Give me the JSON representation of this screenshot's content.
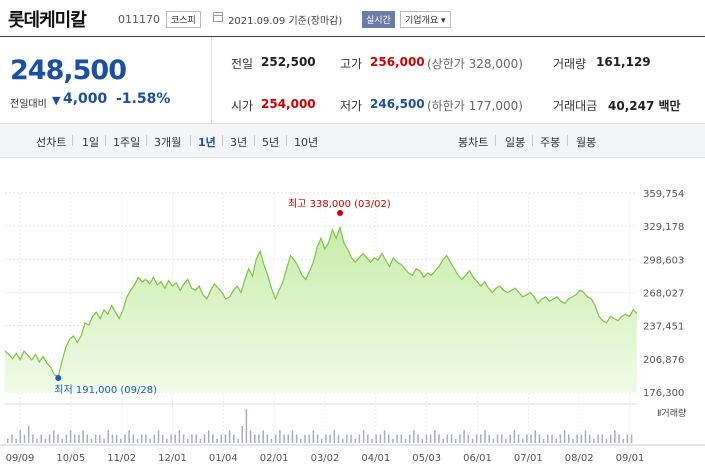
{
  "header": {
    "title": "롯데케미칼",
    "code": "011170",
    "market": "코스피",
    "date": "2021.09.09",
    "basis": "기준(장마감)",
    "realtime": "실시간",
    "corp_info": "기업개요"
  },
  "quote": {
    "price": "248,500",
    "diff_label": "전일대비",
    "diff_value": "4,000",
    "diff_pct": "-1.58%",
    "prev_label": "전일",
    "prev_value": "252,500",
    "high_label": "고가",
    "high_value": "256,000",
    "upper_limit": "(상한가 328,000)",
    "volume_label": "거래량",
    "volume_value": "161,129",
    "open_label": "시가",
    "open_value": "254,000",
    "low_label": "저가",
    "low_value": "246,500",
    "lower_limit": "(하한가 177,000)",
    "amount_label": "거래대금",
    "amount_value": "40,247 백만"
  },
  "periods": {
    "line_label": "선차트",
    "line_items": [
      "1일",
      "1주일",
      "3개월",
      "1년",
      "3년",
      "5년",
      "10년"
    ],
    "active": "1년",
    "candle_label": "봉차트",
    "candle_items": [
      "일봉",
      "주봉",
      "월봉"
    ]
  },
  "chart_data": {
    "type": "area",
    "y_ticks": [
      "359,754",
      "329,178",
      "298,603",
      "268,027",
      "237,451",
      "206,876",
      "176,300"
    ],
    "ylim": [
      176300,
      359754
    ],
    "x_labels": [
      "09/09",
      "10/05",
      "11/02",
      "12/01",
      "01/04",
      "02/01",
      "03/02",
      "04/01",
      "05/03",
      "06/01",
      "07/01",
      "08/02",
      "09/01"
    ],
    "max_label": "최고 338,000 (03/02)",
    "min_label": "최저 191,000 (09/28)",
    "max_value": 338000,
    "min_value": 191000,
    "volume_label": "거래량",
    "colors": {
      "line": "#7bc642",
      "fill_top": "#c9ecab",
      "fill_bottom": "#f1fbe8",
      "max": "#d20000",
      "min": "#1a5fb4"
    },
    "price_series": [
      214000,
      211000,
      207000,
      212000,
      206000,
      214000,
      210000,
      206000,
      211000,
      204000,
      209000,
      203000,
      199000,
      192000,
      191000,
      205000,
      218000,
      225000,
      228000,
      222000,
      228000,
      240000,
      238000,
      246000,
      250000,
      244000,
      252000,
      248000,
      256000,
      250000,
      244000,
      252000,
      264000,
      270000,
      275000,
      282000,
      278000,
      280000,
      276000,
      282000,
      275000,
      278000,
      272000,
      279000,
      274000,
      277000,
      270000,
      276000,
      280000,
      272000,
      270000,
      274000,
      266000,
      262000,
      270000,
      276000,
      272000,
      268000,
      262000,
      264000,
      270000,
      274000,
      268000,
      280000,
      290000,
      283000,
      299000,
      306000,
      294000,
      284000,
      272000,
      262000,
      270000,
      278000,
      290000,
      302000,
      298000,
      292000,
      284000,
      280000,
      288000,
      296000,
      310000,
      318000,
      308000,
      314000,
      326000,
      318000,
      328000,
      314000,
      308000,
      300000,
      296000,
      300000,
      304000,
      300000,
      296000,
      300000,
      298000,
      304000,
      298000,
      292000,
      300000,
      296000,
      294000,
      290000,
      286000,
      284000,
      290000,
      288000,
      282000,
      286000,
      284000,
      288000,
      292000,
      298000,
      302000,
      296000,
      290000,
      284000,
      280000,
      284000,
      288000,
      282000,
      278000,
      274000,
      278000,
      272000,
      268000,
      272000,
      274000,
      270000,
      268000,
      270000,
      272000,
      268000,
      264000,
      266000,
      268000,
      264000,
      258000,
      262000,
      264000,
      260000,
      262000,
      264000,
      260000,
      258000,
      262000,
      264000,
      266000,
      270000,
      268000,
      264000,
      262000,
      256000,
      246000,
      242000,
      240000,
      246000,
      244000,
      242000,
      246000,
      248000,
      246000,
      252000,
      248500
    ],
    "volume_series": [
      1,
      2,
      1,
      3,
      2,
      4,
      2,
      1,
      2,
      1,
      2,
      3,
      2,
      1,
      2,
      3,
      2,
      2,
      3,
      2,
      1,
      2,
      2,
      1,
      3,
      2,
      2,
      1,
      2,
      3,
      2,
      1,
      2,
      2,
      1,
      2,
      3,
      2,
      1,
      2,
      2,
      3,
      2,
      1,
      2,
      2,
      1,
      2,
      3,
      2,
      1,
      2,
      2,
      3,
      2,
      1,
      4,
      8,
      3,
      2,
      2,
      3,
      2,
      1,
      2,
      3,
      2,
      2,
      3,
      2,
      1,
      2,
      2,
      3,
      2,
      1,
      2,
      2,
      3,
      2,
      1,
      2,
      2,
      1,
      2,
      3,
      2,
      1,
      2,
      2,
      3,
      2,
      1,
      2,
      2,
      1,
      2,
      3,
      2,
      1,
      2,
      2,
      3,
      2,
      1,
      2,
      2,
      1,
      2,
      3,
      2,
      1,
      2,
      2,
      3,
      2,
      1,
      2,
      2,
      1,
      2,
      3,
      2,
      1,
      2,
      2,
      3,
      2,
      1,
      2,
      2,
      1,
      2,
      3,
      2,
      1,
      2,
      2,
      3,
      2,
      1,
      2,
      2,
      1,
      2,
      3,
      2,
      1,
      2,
      2
    ]
  }
}
